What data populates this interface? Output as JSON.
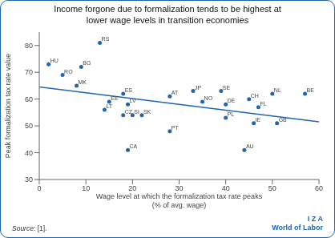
{
  "chart_data": {
    "type": "scatter",
    "title": "Income forgone due to formalization tends to be highest at\nlower wage levels in transition economies",
    "xlabel": "Wage level at which the formalization tax rate peaks\n(% of avg. wage)",
    "ylabel": "Peak formalization tax rate value",
    "x": [
      2,
      5,
      9,
      8,
      13,
      15,
      14,
      18,
      19,
      18,
      20,
      22,
      19,
      28,
      28,
      33,
      35,
      39,
      40,
      40,
      45,
      47,
      50,
      46,
      51,
      44,
      57
    ],
    "values": [
      73,
      69,
      72,
      65,
      81,
      59,
      56,
      62,
      58,
      54,
      54,
      54,
      41,
      61,
      48,
      63,
      59,
      63,
      58,
      53,
      60,
      57,
      62,
      51,
      51,
      41,
      62
    ],
    "point_labels": [
      "HU",
      "RO",
      "BG",
      "MK",
      "RS",
      "EE",
      "LT",
      "ES",
      "LV",
      "CZ",
      "SI",
      "SK",
      "CA",
      "AT",
      "PT",
      "JP",
      "NO",
      "SE",
      "DE",
      "PL",
      "CH",
      "FL",
      "NL",
      "IE",
      "GB",
      "AU",
      "BE"
    ],
    "color": "#2166ac",
    "trendline": {
      "x": [
        0,
        60
      ],
      "values": [
        64.5,
        51.5
      ],
      "color": "#2166ac"
    },
    "xlim": [
      0,
      60
    ],
    "ylim": [
      30,
      85
    ],
    "xticks": [
      0,
      10,
      20,
      30,
      40,
      50,
      60
    ],
    "yticks": [
      30,
      40,
      50,
      60,
      70,
      80
    ],
    "grid": false,
    "annotations": [
      "Source: [1].",
      "I Z A",
      "World of Labor"
    ]
  }
}
